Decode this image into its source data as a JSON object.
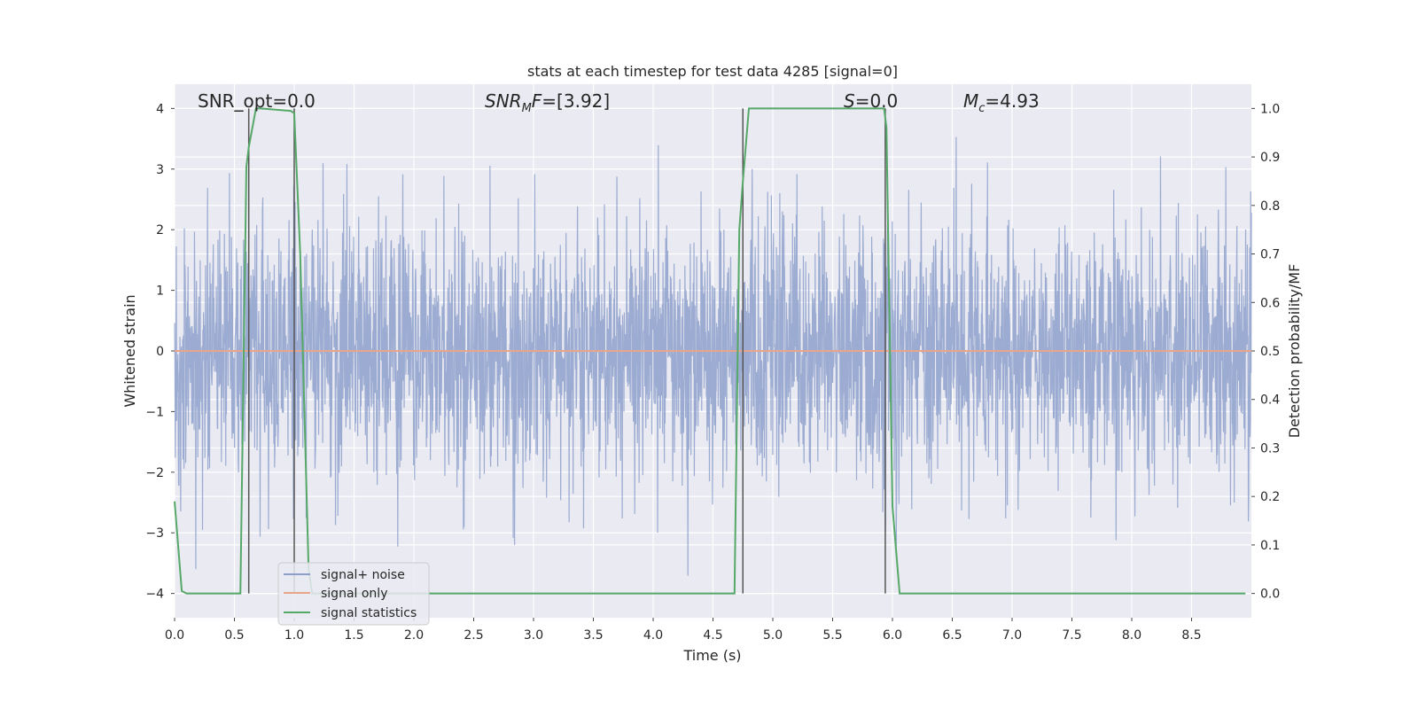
{
  "chart_data": {
    "type": "line",
    "title": "stats at each timestep for test data 4285 [signal=0]",
    "xlabel": "Time (s)",
    "ylabel": "Whitened strain",
    "ylabel_right": "Detection probability/MF",
    "xlim": [
      0,
      9
    ],
    "ylim": [
      -4.4,
      4.4
    ],
    "ylim_right": [
      -0.05,
      1.05
    ],
    "x_ticks": [
      "0.0",
      "0.5",
      "1.0",
      "1.5",
      "2.0",
      "2.5",
      "3.0",
      "3.5",
      "4.0",
      "4.5",
      "5.0",
      "5.5",
      "6.0",
      "6.5",
      "7.0",
      "7.5",
      "8.0",
      "8.5"
    ],
    "y_ticks": [
      "4",
      "3",
      "2",
      "1",
      "0",
      "−1",
      "−2",
      "−3",
      "−4"
    ],
    "y_ticks_right": [
      "1.0",
      "0.9",
      "0.8",
      "0.7",
      "0.6",
      "0.5",
      "0.4",
      "0.3",
      "0.2",
      "0.1",
      "0.0"
    ],
    "grid": true,
    "legend_position": "lower-left",
    "annotations": {
      "snr_opt": "SNR_opt=0.0",
      "snr_mf_prefix": "SNR",
      "snr_mf_sub": "M",
      "snr_mf_suffix": "F=[3.92]",
      "s_label": "S",
      "s_value": "=0.0",
      "mc_label": "M",
      "mc_sub": "c",
      "mc_value": "=4.93"
    },
    "vertical_markers_x": [
      0.62,
      1.0,
      4.75,
      5.94
    ],
    "series": [
      {
        "name": "signal+ noise",
        "color": "#8da0cb",
        "description_of_values": "whitened strain noise spanning roughly -4 to 4 across 0-9 s",
        "envelope": [
          -4.0,
          4.0
        ]
      },
      {
        "name": "signal only",
        "color": "#e8a58a",
        "x": [
          0,
          9
        ],
        "y": [
          0,
          0
        ]
      },
      {
        "name": "signal statistics",
        "color": "#55a868",
        "axis": "right",
        "x": [
          0.0,
          0.06,
          0.1,
          0.55,
          0.6,
          0.62,
          0.68,
          0.72,
          0.97,
          1.0,
          1.05,
          1.12,
          1.15,
          4.68,
          4.72,
          4.75,
          4.8,
          4.83,
          5.93,
          5.95,
          6.0,
          6.06,
          6.1,
          8.95
        ],
        "y": [
          0.19,
          0.005,
          0.0,
          0.0,
          0.88,
          0.92,
          1.0,
          1.0,
          0.995,
          0.99,
          0.7,
          0.05,
          0.0,
          0.0,
          0.75,
          0.85,
          1.0,
          1.0,
          1.0,
          0.96,
          0.18,
          0.0,
          0.0,
          0.0
        ]
      }
    ]
  }
}
